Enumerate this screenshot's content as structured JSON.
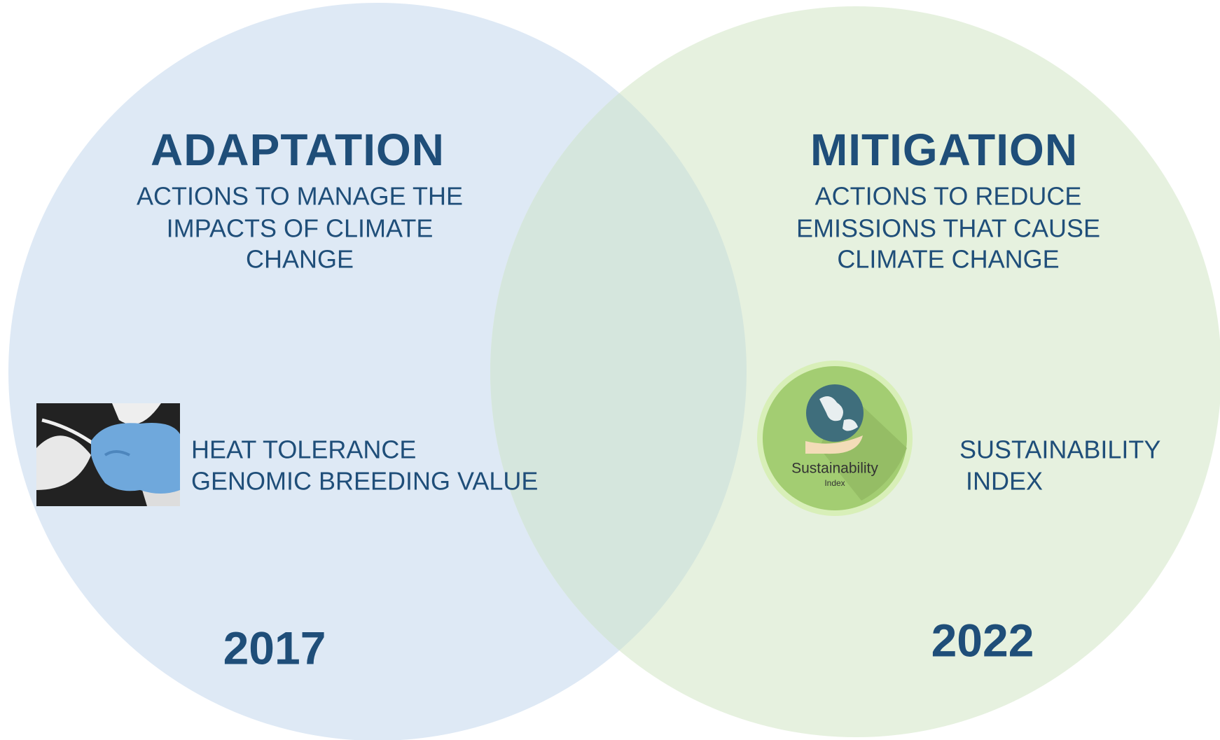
{
  "left": {
    "title": "ADAPTATION",
    "description": [
      "ACTIONS TO MANAGE THE",
      "IMPACTS OF CLIMATE",
      "CHANGE"
    ],
    "item": [
      "HEAT TOLERANCE",
      "GENOMIC BREEDING VALUE"
    ],
    "year": "2017"
  },
  "right": {
    "title": "MITIGATION",
    "description": [
      "ACTIONS TO REDUCE",
      "EMISSIONS THAT CAUSE",
      "CLIMATE CHANGE"
    ],
    "item": [
      "SUSTAINABILITY",
      "INDEX"
    ],
    "year": "2022",
    "badge": [
      "Sustainability",
      "Index"
    ]
  }
}
